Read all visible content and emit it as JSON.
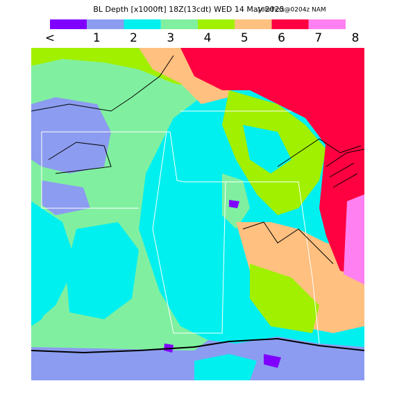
{
  "header": {
    "title": "BL Depth [x1000ft] 18Z(13cdt) WED 14 May 2025",
    "subtitle": "18hrFcst@0204z NAM"
  },
  "legend": {
    "colors": [
      "#8000ff",
      "#8c9cf0",
      "#00f0f0",
      "#80f0a0",
      "#a0f000",
      "#ffc080",
      "#ff0040",
      "#ff80f0"
    ],
    "labels": [
      "<",
      "1",
      "2",
      "3",
      "4",
      "5",
      "6",
      "7",
      "8"
    ]
  }
}
